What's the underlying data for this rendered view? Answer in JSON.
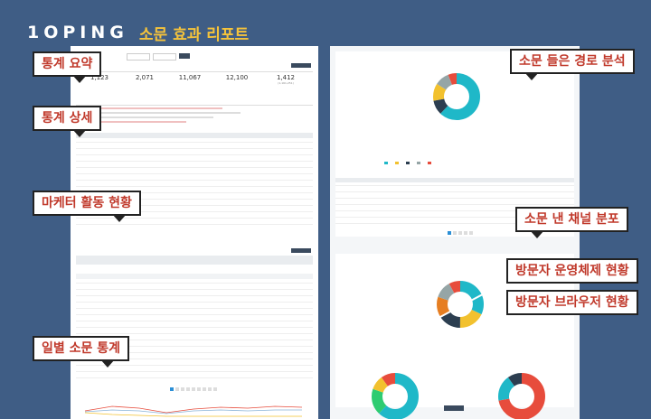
{
  "header": {
    "logo": "1OPING",
    "title": "소문 효과 리포트"
  },
  "callouts": {
    "stats_summary": "통계 요약",
    "stats_detail": "통계 상세",
    "marketing_status": "마케터 활동 현황",
    "daily_stats": "일별 소문 통계",
    "inflow_path": "소문 들은 경로 분석",
    "channel_dist": "소문 낸 채널 분포",
    "visitor_os": "방문자 운영체제 현황",
    "visitor_browser": "방문자 브라우저 현황"
  },
  "summary": {
    "values": [
      "1,123",
      "2,071",
      "11,067",
      "12,100",
      "1,412"
    ],
    "sub_values": [
      "",
      "",
      "",
      "",
      "(1,161,251)"
    ]
  },
  "colors": {
    "teal": "#1fb8c8",
    "yellow": "#f2c12e",
    "navy": "#2c3e50",
    "orange": "#e67e22",
    "red": "#e74c3c",
    "gray": "#95a5a6",
    "green": "#2ecc71",
    "purple": "#8e44ad"
  }
}
